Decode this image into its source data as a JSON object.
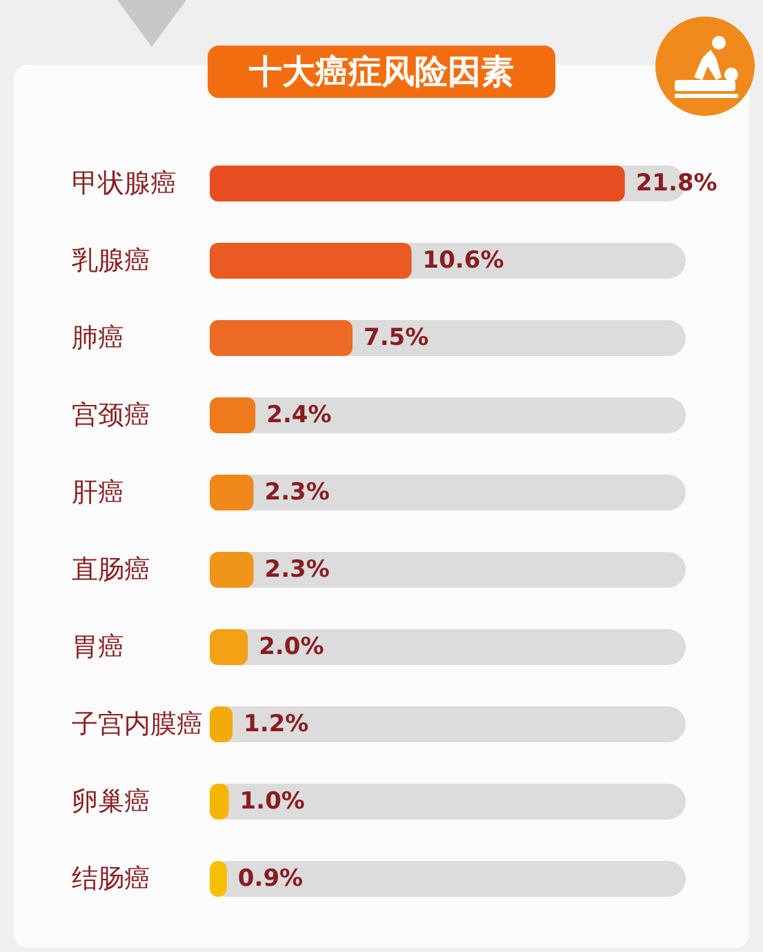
{
  "chart_data": {
    "type": "bar",
    "orientation": "horizontal",
    "title": "十大癌症风险因素",
    "categories": [
      "甲状腺癌",
      "乳腺癌",
      "肺癌",
      "宫颈癌",
      "肝癌",
      "直肠癌",
      "胃癌",
      "子宫内膜癌",
      "卵巢癌",
      "结肠癌"
    ],
    "values": [
      21.8,
      10.6,
      7.5,
      2.4,
      2.3,
      2.3,
      2.0,
      1.2,
      1.0,
      0.9
    ],
    "value_labels": [
      "21.8%",
      "10.6%",
      "7.5%",
      "2.4%",
      "2.3%",
      "2.3%",
      "2.0%",
      "1.2%",
      "1.0%",
      "0.9%"
    ],
    "colors": [
      "#e84d22",
      "#ea5a22",
      "#ec6a24",
      "#ef7a1c",
      "#f0881c",
      "#f0951a",
      "#f2a214",
      "#f3ab0c",
      "#f5b505",
      "#f6c000"
    ],
    "tick_labels": "y"
  }
}
